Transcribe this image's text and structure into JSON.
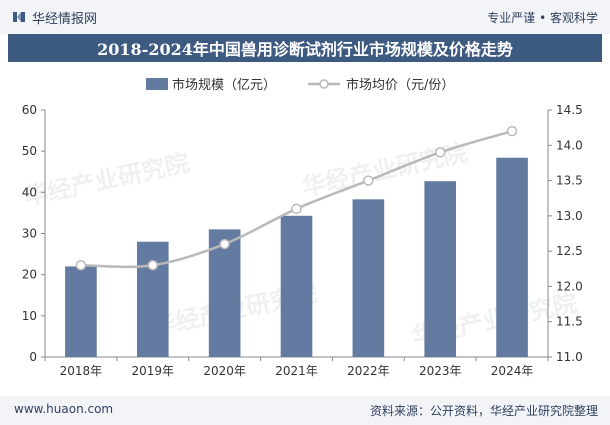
{
  "header": {
    "brand": "华经情报网",
    "tagline": "专业严谨 • 客观科学"
  },
  "title": "2018-2024年中国兽用诊断试剂行业市场规模及价格走势",
  "footer": {
    "left": "www.huaon.com",
    "right": "资料来源：公开资料，华经产业研究院整理"
  },
  "watermark": "华经产业研究院",
  "colors": {
    "bar": "#637aa1",
    "line": "#b9b9b9",
    "title_bg": "#3d5a80",
    "text": "#2f3f5e"
  },
  "chart_data": {
    "type": "bar+line",
    "categories": [
      "2018年",
      "2019年",
      "2020年",
      "2021年",
      "2022年",
      "2023年",
      "2024年"
    ],
    "series": [
      {
        "name": "市场规模（亿元）",
        "type": "bar",
        "axis": "left",
        "values": [
          22,
          28,
          31,
          34.3,
          38.3,
          42.7,
          48.4
        ]
      },
      {
        "name": "市场均价（元/份）",
        "type": "line",
        "axis": "right",
        "values": [
          12.3,
          12.3,
          12.6,
          13.1,
          13.5,
          13.9,
          14.2
        ]
      }
    ],
    "y_left": {
      "min": 0,
      "max": 60,
      "ticks": [
        0,
        10,
        20,
        30,
        40,
        50,
        60
      ]
    },
    "y_right": {
      "min": 11.0,
      "max": 14.5,
      "ticks": [
        "11.0",
        "11.5",
        "12.0",
        "12.5",
        "13.0",
        "13.5",
        "14.0",
        "14.5"
      ]
    },
    "legend_position": "top",
    "grid": false
  }
}
